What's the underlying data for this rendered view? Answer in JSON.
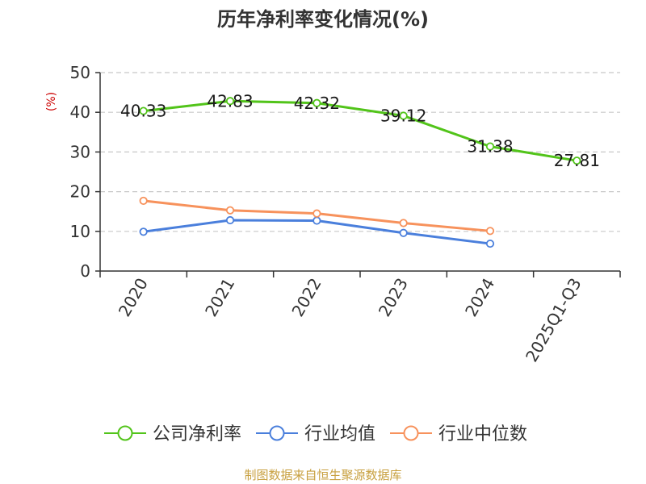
{
  "chart_data": {
    "type": "line",
    "title": "历年净利率变化情况(%)",
    "ylabel": "(%)",
    "xlabel": "",
    "categories": [
      "2020",
      "2021",
      "2022",
      "2023",
      "2024",
      "2025Q1-Q3"
    ],
    "ylim": [
      0,
      50
    ],
    "yticks": [
      0,
      10,
      20,
      30,
      40,
      50
    ],
    "grid": true,
    "legend_position": "bottom",
    "series": [
      {
        "name": "公司净利率",
        "color": "#52c41a",
        "show_labels": true,
        "values": [
          40.33,
          42.83,
          42.32,
          39.12,
          31.38,
          27.81
        ],
        "labels": [
          "40.33",
          "42.83",
          "42.32",
          "39.12",
          "31.38",
          "27.81"
        ]
      },
      {
        "name": "行业均值",
        "color": "#4a7fdc",
        "show_labels": false,
        "values": [
          9.9,
          12.8,
          12.7,
          9.6,
          6.9,
          null
        ]
      },
      {
        "name": "行业中位数",
        "color": "#f7925c",
        "show_labels": false,
        "values": [
          17.7,
          15.3,
          14.5,
          12.1,
          10.1,
          null
        ]
      }
    ],
    "source": "制图数据来自恒生聚源数据库"
  }
}
